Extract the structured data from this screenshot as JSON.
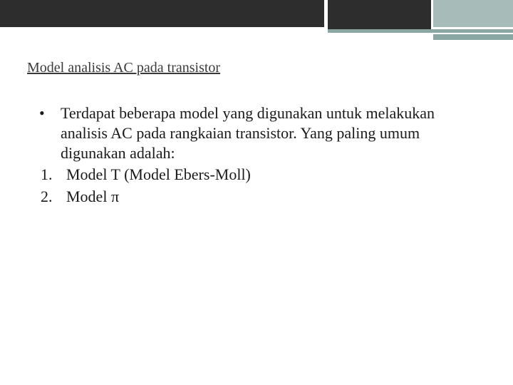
{
  "colors": {
    "bar_dark": "#2d2d2d",
    "bar_teal": "#8aa7a3",
    "bar_teal_light": "#a7bbb8",
    "background": "#ffffff",
    "heading_color": "#3a3a3a",
    "body_color": "#1a1a1a"
  },
  "typography": {
    "heading_fontsize": 20,
    "body_fontsize": 22,
    "font_family": "Georgia"
  },
  "heading": "Model analisis AC pada transistor",
  "bullet": {
    "mark": "•",
    "text": "Terdapat beberapa model yang digunakan untuk melakukan analisis AC pada rangkaian transistor. Yang paling umum digunakan adalah:"
  },
  "numbered": [
    {
      "num": "1.",
      "text": "Model T (Model Ebers-Moll)"
    },
    {
      "num": "2.",
      "text": "Model π"
    }
  ]
}
